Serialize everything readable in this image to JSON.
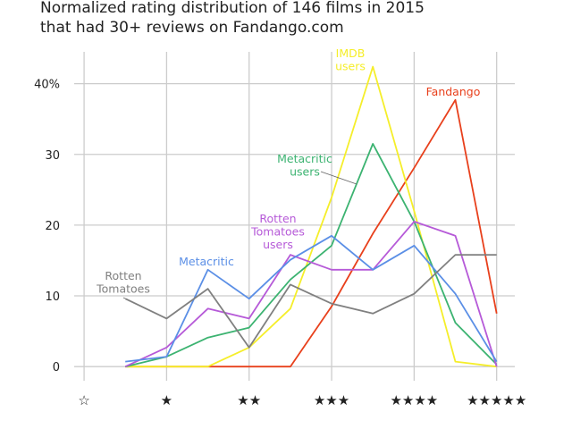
{
  "chart_data": {
    "type": "line",
    "title_lines": [
      "Normalized rating distribution of 146 films in 2015",
      "that had 30+ reviews on Fandango.com"
    ],
    "x": [
      0.5,
      1.0,
      1.5,
      2.0,
      2.5,
      3.0,
      3.5,
      4.0,
      4.5,
      5.0
    ],
    "xticks": [
      {
        "value": 0,
        "label": "☆"
      },
      {
        "value": 1,
        "label": "★"
      },
      {
        "value": 2,
        "label": "★★"
      },
      {
        "value": 3,
        "label": "★★★"
      },
      {
        "value": 4,
        "label": "★★★★"
      },
      {
        "value": 5,
        "label": "★★★★★"
      }
    ],
    "yticks": [
      {
        "value": 0,
        "label": "0"
      },
      {
        "value": 10,
        "label": "10"
      },
      {
        "value": 20,
        "label": "20"
      },
      {
        "value": 30,
        "label": "30"
      },
      {
        "value": 40,
        "label": "40%"
      }
    ],
    "xlim": [
      -0.12,
      5.22
    ],
    "ylim": [
      -2,
      44.5
    ],
    "grid": true,
    "series": [
      {
        "name": "Fandango",
        "label_lines": [
          "Fandango"
        ],
        "color": "#e8401c",
        "values": [
          0,
          0,
          0,
          0,
          0,
          8.5,
          18.8,
          28.1,
          37.7,
          7.5
        ]
      },
      {
        "name": "IMDB users",
        "label_lines": [
          "IMDB",
          "users"
        ],
        "color": "#f5ee2a",
        "values": [
          0,
          0,
          0,
          2.7,
          8.2,
          23.9,
          42.4,
          22.0,
          0.7,
          0
        ]
      },
      {
        "name": "Metacritic users",
        "label_lines": [
          "Metacritic",
          "users"
        ],
        "color": "#3cb371",
        "values": [
          0,
          1.4,
          4.1,
          5.5,
          12.3,
          17.1,
          31.5,
          20.5,
          6.2,
          0.3
        ]
      },
      {
        "name": "Rotten Tomatoes users",
        "label_lines": [
          "Rotten",
          "Tomatoes",
          "users"
        ],
        "color": "#b65ad8",
        "values": [
          0,
          2.7,
          8.2,
          6.8,
          15.8,
          13.7,
          13.7,
          20.5,
          18.5,
          0
        ]
      },
      {
        "name": "Metacritic",
        "label_lines": [
          "Metacritic"
        ],
        "color": "#5b8fe6",
        "values": [
          0.7,
          1.4,
          13.7,
          9.6,
          15.1,
          18.5,
          13.7,
          17.1,
          10.3,
          0.7
        ]
      },
      {
        "name": "Rotten Tomatoes",
        "label_lines": [
          "Rotten",
          "Tomatoes"
        ],
        "color": "#808080",
        "values": [
          9.6,
          6.8,
          11.0,
          2.7,
          11.6,
          8.9,
          7.5,
          10.3,
          15.8,
          15.8
        ]
      }
    ]
  }
}
